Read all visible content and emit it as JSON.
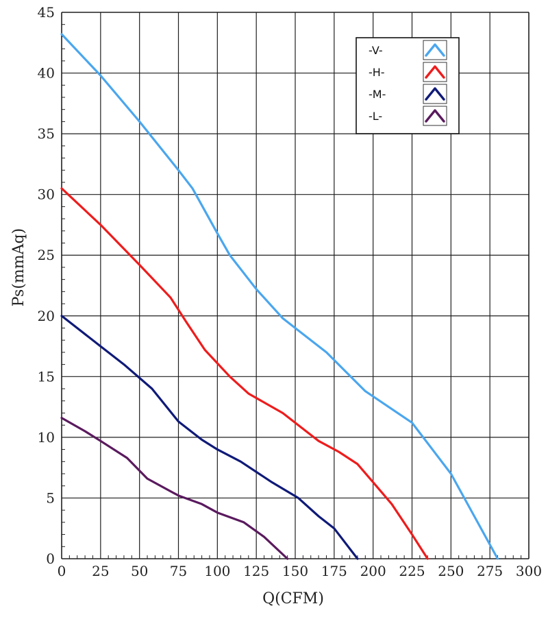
{
  "chart_data": {
    "type": "line",
    "title": "",
    "xlabel": "Q(CFM)",
    "ylabel": "Ps(mmAq)",
    "xlim": [
      0,
      300
    ],
    "ylim": [
      0,
      45
    ],
    "xticks": [
      0,
      25,
      50,
      75,
      100,
      125,
      150,
      175,
      200,
      225,
      250,
      275,
      300
    ],
    "yticks": [
      0,
      5,
      10,
      15,
      20,
      25,
      30,
      35,
      40,
      45
    ],
    "grid": true,
    "legend_position": "top-right",
    "series": [
      {
        "name": "-V-",
        "color": "#4aa6ee",
        "points": [
          [
            0,
            43.2
          ],
          [
            25,
            39.8
          ],
          [
            50,
            36.0
          ],
          [
            75,
            32.0
          ],
          [
            84,
            30.5
          ],
          [
            100,
            26.8
          ],
          [
            108,
            25.0
          ],
          [
            125,
            22.2
          ],
          [
            142,
            19.8
          ],
          [
            150,
            19.0
          ],
          [
            170,
            17.0
          ],
          [
            195,
            13.8
          ],
          [
            225,
            11.2
          ],
          [
            250,
            7.0
          ],
          [
            265,
            3.5
          ],
          [
            280,
            0
          ]
        ]
      },
      {
        "name": "-H-",
        "color": "#ee1c1c",
        "points": [
          [
            0,
            30.5
          ],
          [
            25,
            27.5
          ],
          [
            50,
            24.2
          ],
          [
            70,
            21.5
          ],
          [
            80,
            19.5
          ],
          [
            92,
            17.2
          ],
          [
            108,
            15.0
          ],
          [
            120,
            13.6
          ],
          [
            142,
            12.0
          ],
          [
            165,
            9.7
          ],
          [
            178,
            8.8
          ],
          [
            190,
            7.8
          ],
          [
            200,
            6.3
          ],
          [
            212,
            4.5
          ],
          [
            225,
            2.0
          ],
          [
            235,
            0
          ]
        ]
      },
      {
        "name": "-M-",
        "color": "#0f1a78",
        "points": [
          [
            0,
            20.0
          ],
          [
            25,
            17.5
          ],
          [
            40,
            16.0
          ],
          [
            58,
            14.0
          ],
          [
            75,
            11.3
          ],
          [
            90,
            9.8
          ],
          [
            100,
            9.0
          ],
          [
            115,
            8.0
          ],
          [
            135,
            6.3
          ],
          [
            152,
            5.0
          ],
          [
            165,
            3.5
          ],
          [
            175,
            2.5
          ],
          [
            190,
            0
          ]
        ]
      },
      {
        "name": "-L-",
        "color": "#5a1a5e",
        "points": [
          [
            0,
            11.6
          ],
          [
            15,
            10.5
          ],
          [
            25,
            9.7
          ],
          [
            42,
            8.3
          ],
          [
            55,
            6.6
          ],
          [
            75,
            5.2
          ],
          [
            90,
            4.5
          ],
          [
            100,
            3.8
          ],
          [
            117,
            3.0
          ],
          [
            130,
            1.8
          ],
          [
            145,
            0
          ]
        ]
      }
    ]
  }
}
